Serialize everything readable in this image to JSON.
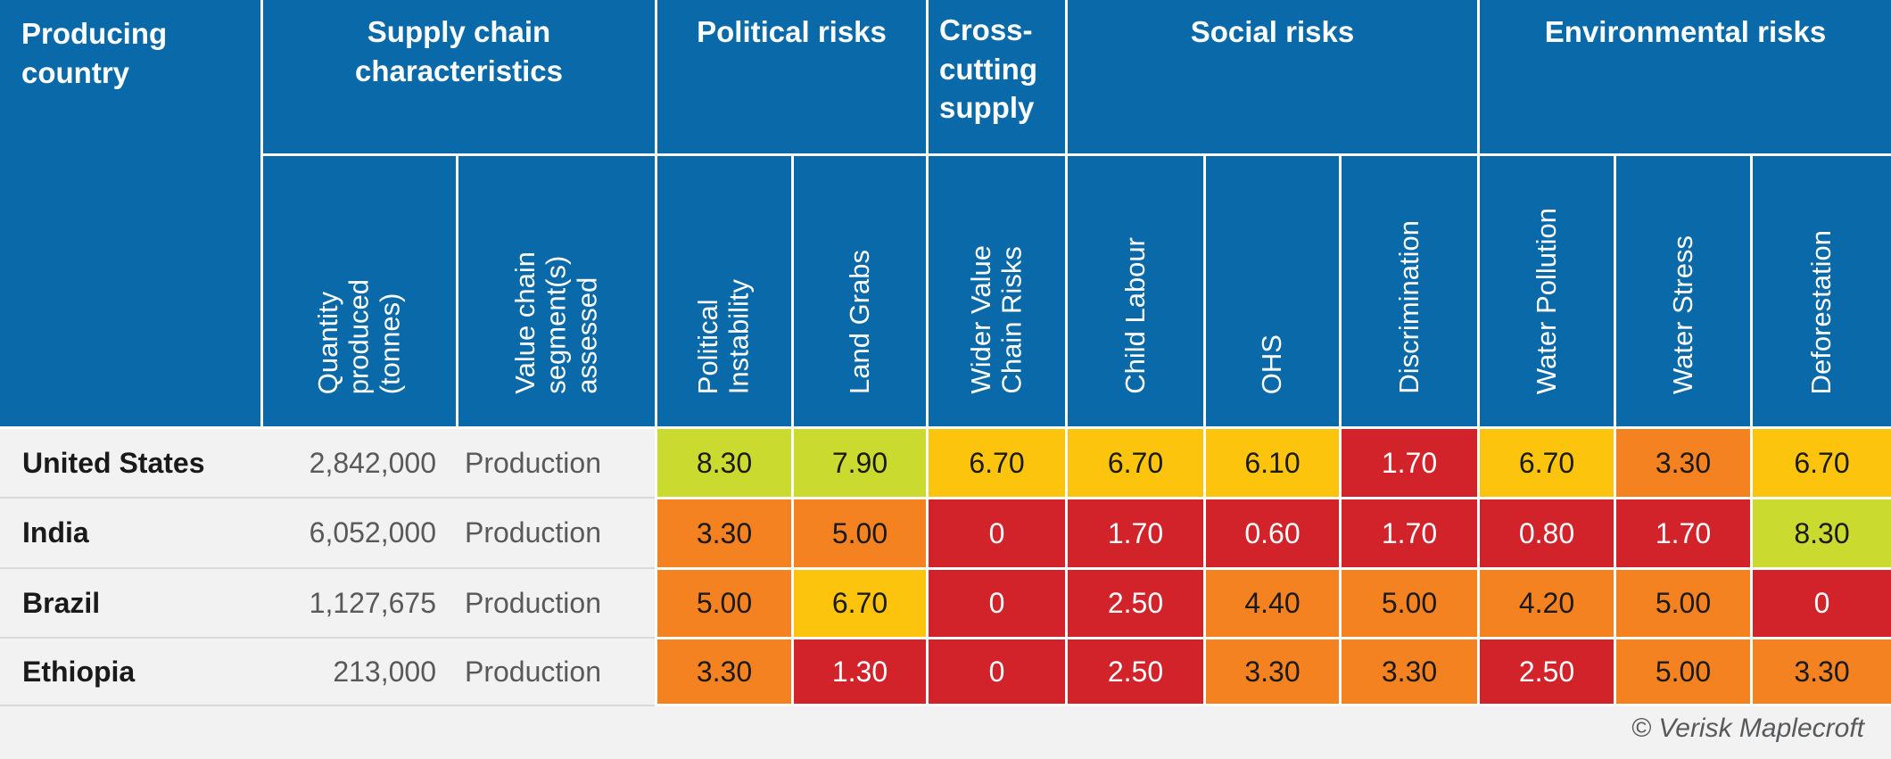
{
  "chart_data": {
    "type": "table",
    "column_groups": [
      {
        "label": "Producing\ncountry"
      },
      {
        "label": "Supply chain\ncharacteristics"
      },
      {
        "label": "Political risks"
      },
      {
        "label": "Cross-\ncutting\nsupply"
      },
      {
        "label": "Social risks"
      },
      {
        "label": "Environmental risks"
      }
    ],
    "sub_columns": [
      "Quantity\nproduced\n(tonnes)",
      "Value chain\nsegment(s)\nassessed",
      "Political\nInstability",
      "Land Grabs",
      "Wider Value\nChain Risks",
      "Child Labour",
      "OHS",
      "Discrimination",
      "Water Pollution",
      "Water Stress",
      "Deforestation"
    ],
    "rows": [
      {
        "country": "United States",
        "quantity": "2,842,000",
        "segment": "Production",
        "scores": [
          {
            "value": "8.30",
            "level": "yellowgreen"
          },
          {
            "value": "7.90",
            "level": "yellowgreen"
          },
          {
            "value": "6.70",
            "level": "amber"
          },
          {
            "value": "6.70",
            "level": "amber"
          },
          {
            "value": "6.10",
            "level": "amber"
          },
          {
            "value": "1.70",
            "level": "red"
          },
          {
            "value": "6.70",
            "level": "amber"
          },
          {
            "value": "3.30",
            "level": "orange"
          },
          {
            "value": "6.70",
            "level": "amber"
          }
        ]
      },
      {
        "country": "India",
        "quantity": "6,052,000",
        "segment": "Production",
        "scores": [
          {
            "value": "3.30",
            "level": "orange"
          },
          {
            "value": "5.00",
            "level": "orange"
          },
          {
            "value": "0",
            "level": "red"
          },
          {
            "value": "1.70",
            "level": "red"
          },
          {
            "value": "0.60",
            "level": "red"
          },
          {
            "value": "1.70",
            "level": "red"
          },
          {
            "value": "0.80",
            "level": "red"
          },
          {
            "value": "1.70",
            "level": "red"
          },
          {
            "value": "8.30",
            "level": "yellowgreen"
          }
        ]
      },
      {
        "country": "Brazil",
        "quantity": "1,127,675",
        "segment": "Production",
        "scores": [
          {
            "value": "5.00",
            "level": "orange"
          },
          {
            "value": "6.70",
            "level": "amber"
          },
          {
            "value": "0",
            "level": "red"
          },
          {
            "value": "2.50",
            "level": "red"
          },
          {
            "value": "4.40",
            "level": "orange"
          },
          {
            "value": "5.00",
            "level": "orange"
          },
          {
            "value": "4.20",
            "level": "orange"
          },
          {
            "value": "5.00",
            "level": "orange"
          },
          {
            "value": "0",
            "level": "red"
          }
        ]
      },
      {
        "country": "Ethiopia",
        "quantity": "213,000",
        "segment": "Production",
        "scores": [
          {
            "value": "3.30",
            "level": "orange"
          },
          {
            "value": "1.30",
            "level": "red"
          },
          {
            "value": "0",
            "level": "red"
          },
          {
            "value": "2.50",
            "level": "red"
          },
          {
            "value": "3.30",
            "level": "orange"
          },
          {
            "value": "3.30",
            "level": "orange"
          },
          {
            "value": "2.50",
            "level": "red"
          },
          {
            "value": "5.00",
            "level": "orange"
          },
          {
            "value": "3.30",
            "level": "orange"
          }
        ]
      }
    ],
    "risk_scale_colors": {
      "red": "#d2232a",
      "orange": "#f58220",
      "amber": "#fcc40d",
      "yellowgreen": "#cbda2f"
    },
    "footer": "© Verisk Maplecroft"
  },
  "colors": {
    "header_blue": "#0a6aa9",
    "row_bg": "#f2f2f2",
    "row_divider": "#d9d9d9",
    "score_text_dark": "#1a1a1a",
    "score_text_light": "#ffffff"
  }
}
